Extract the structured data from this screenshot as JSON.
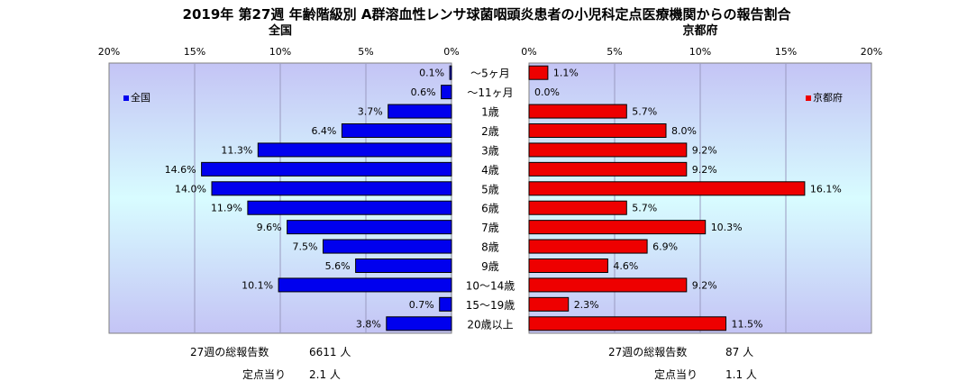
{
  "title": "2019年 第27週 年齢階級別 A群溶血性レンサ球菌咽頭炎患者の小児科定点医療機関からの報告割合",
  "colors": {
    "left_bar": "#0000ee",
    "right_bar": "#ee0000",
    "plot_bg_edge": "#c4c4f5",
    "plot_bg_center": "#d8fcff"
  },
  "chart_data": {
    "type": "bar",
    "categories": [
      "～5ヶ月",
      "～11ヶ月",
      "1歳",
      "2歳",
      "3歳",
      "4歳",
      "5歳",
      "6歳",
      "7歳",
      "8歳",
      "9歳",
      "10～14歳",
      "15～19歳",
      "20歳以上"
    ],
    "panels": [
      {
        "title": "全国",
        "legend": "全国",
        "legend_position": "top-left",
        "direction": "reversed",
        "xlim": [
          0,
          20
        ],
        "ticks": [
          "20%",
          "15%",
          "10%",
          "5%",
          "0%"
        ],
        "values": [
          0.1,
          0.6,
          3.7,
          6.4,
          11.3,
          14.6,
          14.0,
          11.9,
          9.6,
          7.5,
          5.6,
          10.1,
          0.7,
          3.8
        ],
        "labels": [
          "0.1%",
          "0.6%",
          "3.7%",
          "6.4%",
          "11.3%",
          "14.6%",
          "14.0%",
          "11.9%",
          "9.6%",
          "7.5%",
          "5.6%",
          "10.1%",
          "0.7%",
          "3.8%"
        ]
      },
      {
        "title": "京都府",
        "legend": "京都府",
        "legend_position": "top-right",
        "direction": "normal",
        "xlim": [
          0,
          20
        ],
        "ticks": [
          "0%",
          "5%",
          "10%",
          "15%",
          "20%"
        ],
        "values": [
          1.1,
          0.0,
          5.7,
          8.0,
          9.2,
          9.2,
          16.1,
          5.7,
          10.3,
          6.9,
          4.6,
          9.2,
          2.3,
          11.5
        ],
        "labels": [
          "1.1%",
          "0.0%",
          "5.7%",
          "8.0%",
          "9.2%",
          "9.2%",
          "16.1%",
          "5.7%",
          "10.3%",
          "6.9%",
          "4.6%",
          "9.2%",
          "2.3%",
          "11.5%"
        ]
      }
    ],
    "grid": true
  },
  "footer": {
    "left": {
      "total_label": "27週の総報告数",
      "total_value": "6611 人",
      "per_label": "定点当り",
      "per_value": "2.1 人"
    },
    "right": {
      "total_label": "27週の総報告数",
      "total_value": "87 人",
      "per_label": "定点当り",
      "per_value": "1.1 人"
    }
  }
}
